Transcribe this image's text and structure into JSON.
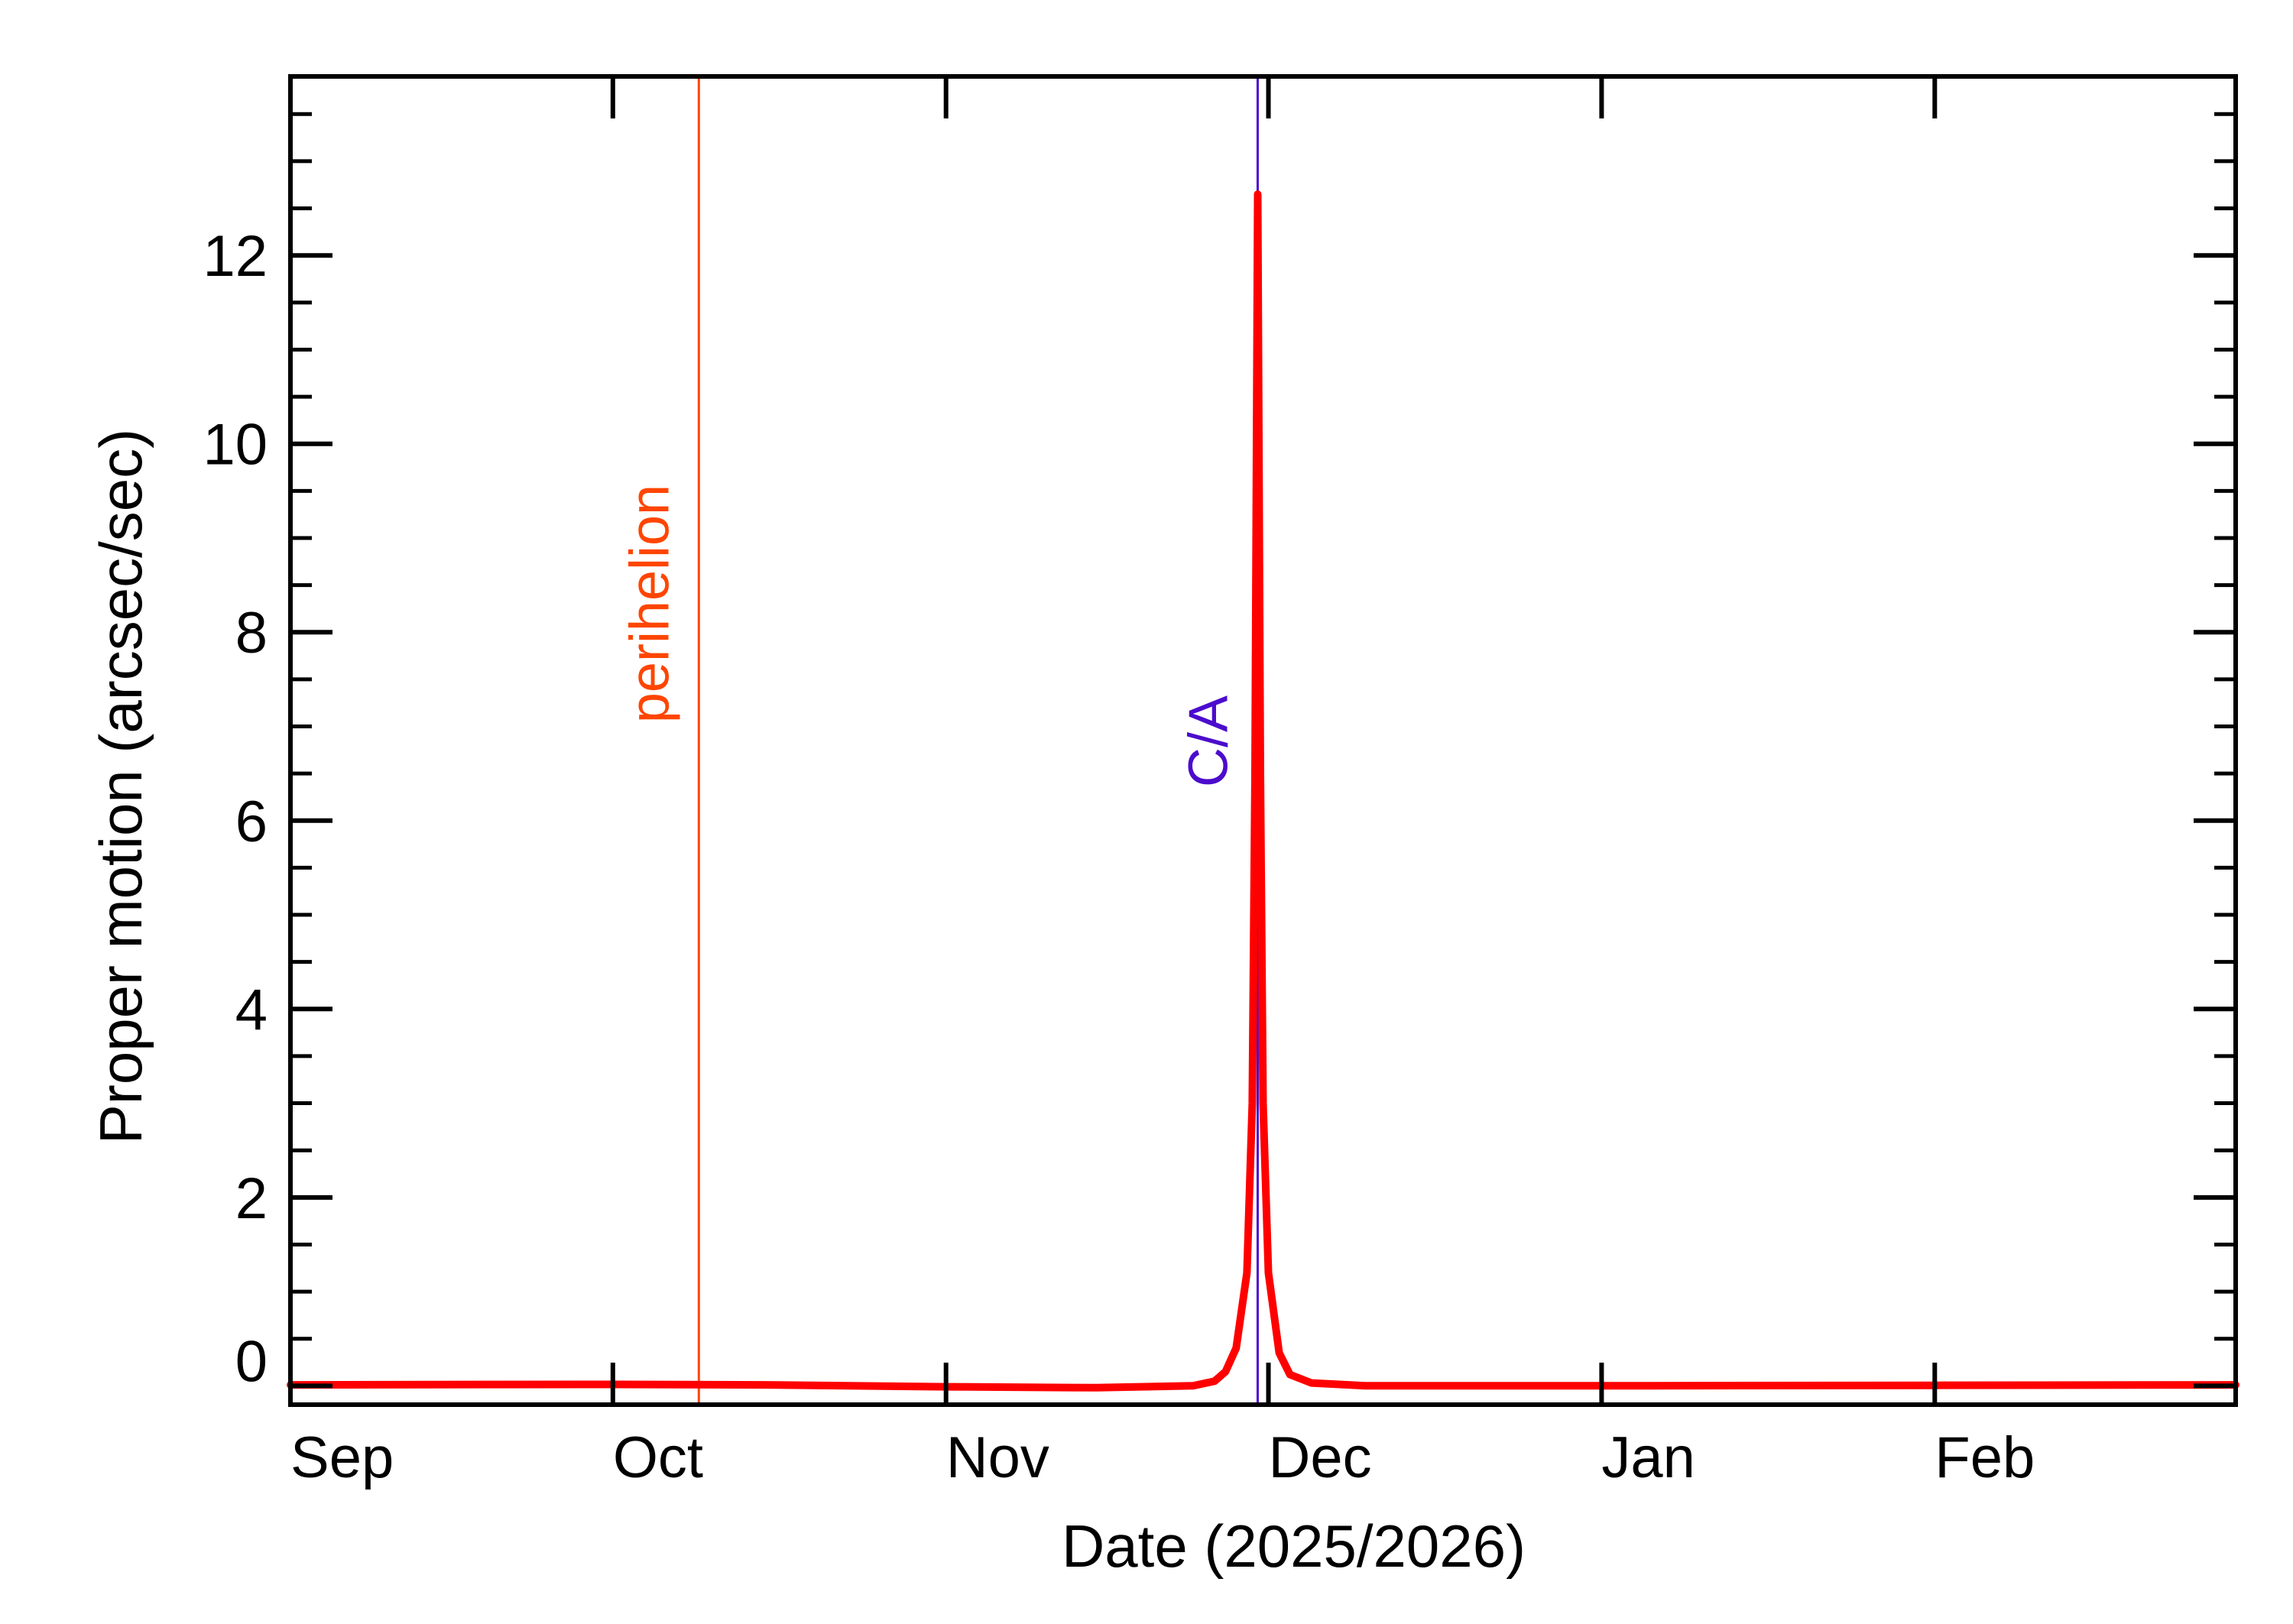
{
  "chart_data": {
    "type": "line",
    "title": "",
    "xlabel": "Date (2025/2026)",
    "ylabel": "Proper motion (arcsec/sec)",
    "x_range": [
      "2025-09-01",
      "2026-03-01"
    ],
    "ylim": [
      -0.2,
      13.9
    ],
    "grid": false,
    "legend": "none",
    "x_ticks": [
      {
        "date": "2025-09-01",
        "label": "Sep"
      },
      {
        "date": "2025-10-01",
        "label": "Oct"
      },
      {
        "date": "2025-11-01",
        "label": "Nov"
      },
      {
        "date": "2025-12-01",
        "label": "Dec"
      },
      {
        "date": "2026-01-01",
        "label": "Jan"
      },
      {
        "date": "2026-02-01",
        "label": "Feb"
      }
    ],
    "y_ticks": [
      {
        "value": 0,
        "label": "0"
      },
      {
        "value": 2,
        "label": "2"
      },
      {
        "value": 4,
        "label": "4"
      },
      {
        "value": 6,
        "label": "6"
      },
      {
        "value": 8,
        "label": "8"
      },
      {
        "value": 10,
        "label": "10"
      },
      {
        "value": 12,
        "label": "12"
      }
    ],
    "y_minor_step": 0.5,
    "series": [
      {
        "color": "#ff0000",
        "points": [
          [
            "2025-09-01",
            0.01
          ],
          [
            "2025-09-10",
            0.012
          ],
          [
            "2025-09-20",
            0.014
          ],
          [
            "2025-10-01",
            0.015
          ],
          [
            "2025-10-15",
            0.01
          ],
          [
            "2025-11-01",
            -0.01
          ],
          [
            "2025-11-15",
            -0.02
          ],
          [
            "2025-11-24",
            0.0
          ],
          [
            "2025-11-26",
            0.05
          ],
          [
            "2025-11-27",
            0.15
          ],
          [
            "2025-11-28",
            0.4
          ],
          [
            "2025-11-29",
            1.2
          ],
          [
            "2025-11-29 12:00",
            3.0
          ],
          [
            "2025-11-29 18:00",
            6.5
          ],
          [
            "2025-11-30 00:00",
            12.65
          ],
          [
            "2025-11-30 06:00",
            6.5
          ],
          [
            "2025-11-30 12:00",
            3.0
          ],
          [
            "2025-12-01",
            1.2
          ],
          [
            "2025-12-02",
            0.35
          ],
          [
            "2025-12-03",
            0.12
          ],
          [
            "2025-12-05",
            0.03
          ],
          [
            "2025-12-10",
            0.0
          ],
          [
            "2026-01-01",
            0.0
          ],
          [
            "2026-02-01",
            0.005
          ],
          [
            "2026-03-01",
            0.01
          ]
        ]
      }
    ],
    "markers": [
      {
        "date": "2025-10-09",
        "label": "perihelion",
        "color": "#ff4500"
      },
      {
        "date": "2025-11-30",
        "label": "C/A",
        "color": "#4b0ccc"
      }
    ]
  }
}
